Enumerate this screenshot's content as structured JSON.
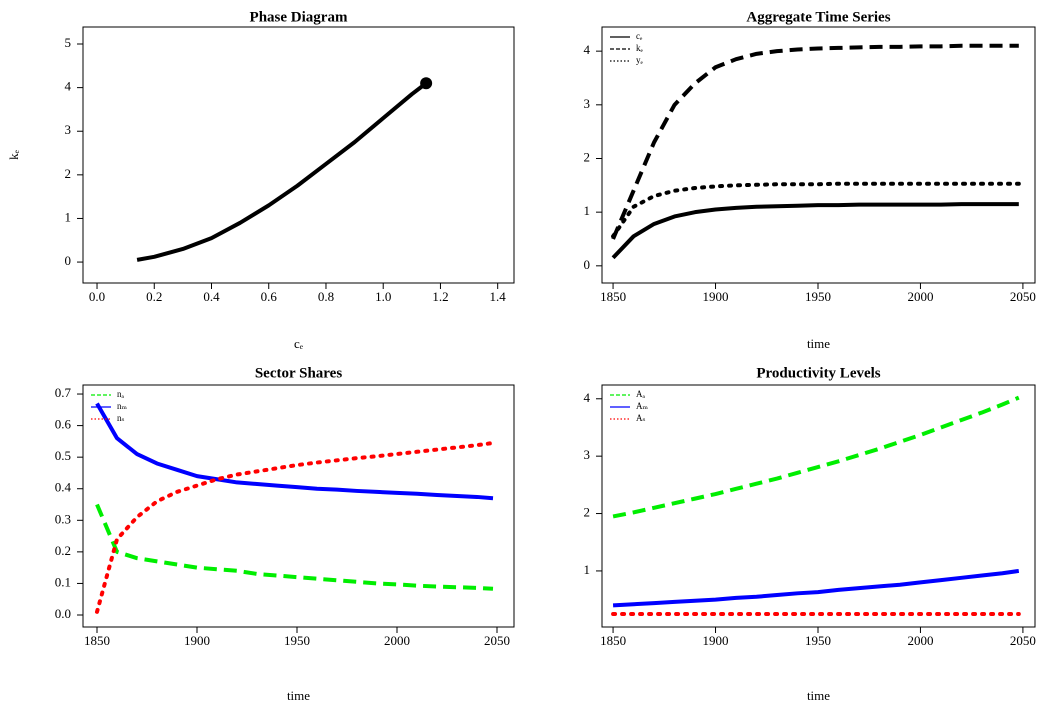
{
  "chart_data": [
    {
      "type": "line",
      "title": "Phase Diagram",
      "xlabel": "cₑ",
      "ylabel": "kₑ",
      "x": [
        0.14,
        0.2,
        0.3,
        0.4,
        0.5,
        0.6,
        0.7,
        0.8,
        0.9,
        1.0,
        1.1,
        1.15
      ],
      "series": [
        {
          "name": null,
          "color": "#000000",
          "dash": "solid",
          "endpoint_marker": true,
          "values": [
            0.05,
            0.12,
            0.3,
            0.55,
            0.9,
            1.3,
            1.75,
            2.25,
            2.75,
            3.3,
            3.85,
            4.1
          ]
        }
      ],
      "xlim": [
        -0.049,
        1.457
      ],
      "ylim": [
        -0.48,
        5.39
      ],
      "xticks": [
        {
          "value": 0,
          "label": "0.0"
        },
        0.2,
        0.4,
        0.6,
        0.8,
        {
          "value": 1,
          "label": "1.0"
        },
        1.2,
        1.4
      ],
      "yticks": [
        0,
        1,
        2,
        3,
        4,
        5
      ]
    },
    {
      "type": "line",
      "title": "Aggregate Time Series",
      "xlabel": "time",
      "legend": "topleft",
      "x": [
        1850,
        1860,
        1870,
        1880,
        1890,
        1900,
        1910,
        1920,
        1930,
        1940,
        1950,
        1960,
        1970,
        1980,
        1990,
        2000,
        2010,
        2020,
        2030,
        2040,
        2048
      ],
      "series": [
        {
          "name": "cₑ",
          "color": "#000000",
          "dash": "solid",
          "values": [
            0.15,
            0.55,
            0.78,
            0.92,
            1.0,
            1.05,
            1.08,
            1.1,
            1.11,
            1.12,
            1.13,
            1.13,
            1.14,
            1.14,
            1.14,
            1.14,
            1.14,
            1.15,
            1.15,
            1.15,
            1.15
          ]
        },
        {
          "name": "kₑ",
          "color": "#000000",
          "dash": "dashed",
          "values": [
            0.5,
            1.4,
            2.3,
            3.0,
            3.4,
            3.7,
            3.85,
            3.95,
            4.0,
            4.03,
            4.05,
            4.06,
            4.07,
            4.08,
            4.08,
            4.09,
            4.09,
            4.1,
            4.1,
            4.1,
            4.1
          ]
        },
        {
          "name": "yₑ",
          "color": "#000000",
          "dash": "dotted",
          "values": [
            0.55,
            1.1,
            1.3,
            1.4,
            1.45,
            1.48,
            1.5,
            1.51,
            1.52,
            1.52,
            1.52,
            1.53,
            1.53,
            1.53,
            1.53,
            1.53,
            1.53,
            1.53,
            1.53,
            1.53,
            1.53
          ]
        }
      ],
      "xlim": [
        1844.6,
        2055.9
      ],
      "ylim": [
        -0.32,
        4.45
      ],
      "xticks": [
        1850,
        1900,
        1950,
        2000,
        2050
      ],
      "yticks": [
        0,
        1,
        2,
        3,
        4
      ]
    },
    {
      "type": "line",
      "title": "Sector Shares",
      "xlabel": "time",
      "legend": "topleft",
      "x": [
        1850,
        1860,
        1870,
        1880,
        1890,
        1900,
        1910,
        1920,
        1930,
        1940,
        1950,
        1960,
        1970,
        1980,
        1990,
        2000,
        2010,
        2020,
        2030,
        2040,
        2048
      ],
      "series": [
        {
          "name": "nₐ",
          "color": "#00ee00",
          "dash": "dashed",
          "values": [
            0.35,
            0.2,
            0.18,
            0.17,
            0.16,
            0.15,
            0.145,
            0.14,
            0.13,
            0.125,
            0.12,
            0.115,
            0.11,
            0.105,
            0.1,
            0.097,
            0.093,
            0.09,
            0.088,
            0.086,
            0.083
          ]
        },
        {
          "name": "nₘ",
          "color": "#0000ff",
          "dash": "solid",
          "values": [
            0.67,
            0.56,
            0.51,
            0.48,
            0.46,
            0.44,
            0.43,
            0.42,
            0.415,
            0.41,
            0.405,
            0.4,
            0.397,
            0.393,
            0.39,
            0.387,
            0.384,
            0.38,
            0.377,
            0.374,
            0.37
          ]
        },
        {
          "name": "nₛ",
          "color": "#ff0000",
          "dash": "dotted",
          "values": [
            0.01,
            0.24,
            0.31,
            0.36,
            0.39,
            0.41,
            0.43,
            0.445,
            0.455,
            0.465,
            0.475,
            0.483,
            0.49,
            0.497,
            0.503,
            0.51,
            0.517,
            0.524,
            0.531,
            0.538,
            0.545
          ]
        }
      ],
      "xlim": [
        1843,
        2058.5
      ],
      "ylim": [
        -0.038,
        0.7286
      ],
      "xticks": [
        1850,
        1900,
        1950,
        2000,
        2050
      ],
      "yticks": [
        {
          "value": 0,
          "label": "0.0"
        },
        0.1,
        0.2,
        0.3,
        0.4,
        0.5,
        0.6,
        0.7
      ]
    },
    {
      "type": "line",
      "title": "Productivity Levels",
      "xlabel": "time",
      "legend": "topleft",
      "x": [
        1850,
        1860,
        1870,
        1880,
        1890,
        1900,
        1910,
        1920,
        1930,
        1940,
        1950,
        1960,
        1970,
        1980,
        1990,
        2000,
        2010,
        2020,
        2030,
        2040,
        2048
      ],
      "series": [
        {
          "name": "Aₐ",
          "color": "#00ee00",
          "dash": "dashed",
          "values": [
            1.95,
            2.02,
            2.1,
            2.18,
            2.26,
            2.34,
            2.43,
            2.52,
            2.61,
            2.71,
            2.81,
            2.91,
            3.02,
            3.13,
            3.25,
            3.37,
            3.5,
            3.63,
            3.76,
            3.9,
            4.02
          ]
        },
        {
          "name": "Aₘ",
          "color": "#0000ff",
          "dash": "solid",
          "values": [
            0.4,
            0.42,
            0.44,
            0.46,
            0.48,
            0.5,
            0.53,
            0.55,
            0.58,
            0.61,
            0.63,
            0.67,
            0.7,
            0.73,
            0.76,
            0.8,
            0.84,
            0.88,
            0.92,
            0.96,
            1.0
          ]
        },
        {
          "name": "Aₛ",
          "color": "#ff0000",
          "dash": "dotted",
          "values": [
            0.25,
            0.25,
            0.25,
            0.25,
            0.25,
            0.25,
            0.25,
            0.25,
            0.25,
            0.25,
            0.25,
            0.25,
            0.25,
            0.25,
            0.25,
            0.25,
            0.25,
            0.25,
            0.25,
            0.25,
            0.25
          ]
        }
      ],
      "xlim": [
        1844.6,
        2055.9
      ],
      "ylim": [
        0.023,
        4.24
      ],
      "xticks": [
        1850,
        1900,
        1950,
        2000,
        2050
      ],
      "yticks": [
        1,
        2,
        3,
        4
      ]
    }
  ]
}
